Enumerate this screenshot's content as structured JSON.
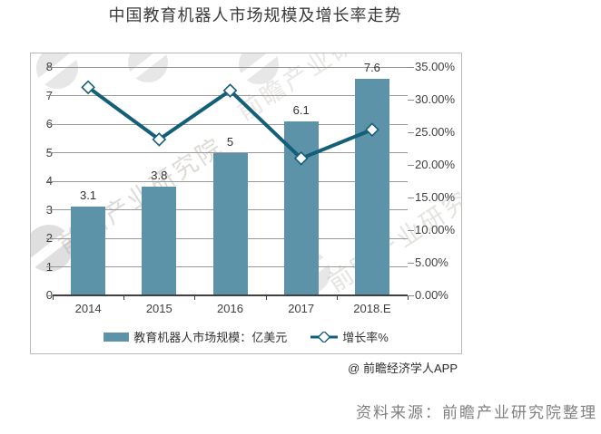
{
  "title": "中国教育机器人市场规模及增长率走势",
  "watermark": {
    "text": "前瞻产业研究院",
    "logo": "qianzhan-globe-logo"
  },
  "chart_data": {
    "type": "bar",
    "subtype": "bar-line-combo",
    "title": "中国教育机器人市场规模及增长率走势",
    "categories": [
      "2014",
      "2015",
      "2016",
      "2017",
      "2018.E"
    ],
    "series": [
      {
        "name": "教育机器人市场规模：亿美元",
        "type": "bar",
        "axis": "left",
        "values": [
          3.1,
          3.8,
          5,
          6.1,
          7.6
        ],
        "data_labels": [
          "3.1",
          "3.8",
          "5",
          "6.1",
          "7.6"
        ],
        "color": "#5d93a8"
      },
      {
        "name": "增长率%",
        "type": "line",
        "axis": "right",
        "marker": "diamond",
        "values": [
          31.9,
          23.9,
          31.4,
          21.0,
          25.4
        ],
        "color": "#135f79",
        "marker_fill": "#ffffff"
      }
    ],
    "left_axis": {
      "min": 0,
      "max": 8,
      "step": 1,
      "tick_labels": [
        "8",
        "7",
        "6",
        "5",
        "4",
        "3",
        "2",
        "1",
        "0"
      ]
    },
    "right_axis": {
      "min": 0,
      "max": 35,
      "step": 5,
      "tick_labels": [
        "35.00%",
        "30.00%",
        "25.00%",
        "20.00%",
        "15.00%",
        "10.00%",
        "5.00%",
        "0.00%"
      ]
    },
    "grid": true,
    "legend_position": "bottom-center",
    "gridline_color": "#9a9a9a",
    "frame_border_color": "#b9b9b9"
  },
  "footer": {
    "credit": "@ 前瞻经济学人APP",
    "source": "资料来源：前瞻产业研究院整理"
  }
}
